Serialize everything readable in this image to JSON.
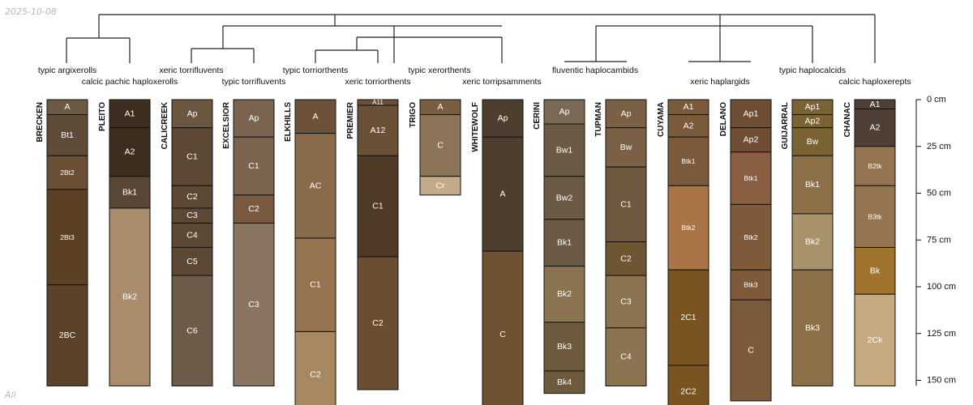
{
  "date_stamp": "2025-10-08",
  "footer_tag": "All",
  "depth_axis": {
    "unit": "cm",
    "max_depth_cm": 153,
    "ticks": [
      {
        "value": 0,
        "label": "0 cm"
      },
      {
        "value": 25,
        "label": "25 cm"
      },
      {
        "value": 50,
        "label": "50 cm"
      },
      {
        "value": 75,
        "label": "75 cm"
      },
      {
        "value": 100,
        "label": "100 cm"
      },
      {
        "value": 125,
        "label": "125 cm"
      },
      {
        "value": 150,
        "label": "150 cm"
      }
    ]
  },
  "taxa": [
    {
      "id": "argixerolls",
      "label": "typic argixerolls"
    },
    {
      "id": "haploxerolls",
      "label": "calcic pachic haploxerolls"
    },
    {
      "id": "torrifluvents_x",
      "label": "xeric torrifluvents"
    },
    {
      "id": "torrifluvents_t",
      "label": "typic torrifluvents"
    },
    {
      "id": "torriorthents_t",
      "label": "typic torriorthents"
    },
    {
      "id": "torriorthents_x",
      "label": "xeric torriorthents"
    },
    {
      "id": "xerorthents",
      "label": "typic xerorthents"
    },
    {
      "id": "torripsamments",
      "label": "xeric torripsamments"
    },
    {
      "id": "haplocambids",
      "label": "fluventic haplocambids"
    },
    {
      "id": "haplargids",
      "label": "xeric haplargids"
    },
    {
      "id": "haplocalcids",
      "label": "typic haplocalcids"
    },
    {
      "id": "haploxerepts",
      "label": "calcic haploxerepts"
    }
  ],
  "profiles": [
    {
      "name": "BRECKEN",
      "horizons": [
        {
          "name": "A",
          "top": 0,
          "bottom": 8,
          "color": "#6d5a44"
        },
        {
          "name": "Bt1",
          "top": 8,
          "bottom": 30,
          "color": "#5e4b38"
        },
        {
          "name": "2Bt2",
          "top": 30,
          "bottom": 48,
          "color": "#6b4f34"
        },
        {
          "name": "2Bt3",
          "top": 48,
          "bottom": 99,
          "color": "#5c4024"
        },
        {
          "name": "2BC",
          "top": 99,
          "bottom": 153,
          "color": "#5c4228"
        }
      ]
    },
    {
      "name": "PLEITO",
      "horizons": [
        {
          "name": "A1",
          "top": 0,
          "bottom": 15,
          "color": "#3e2e20"
        },
        {
          "name": "A2",
          "top": 15,
          "bottom": 41,
          "color": "#3e2e20"
        },
        {
          "name": "Bk1",
          "top": 41,
          "bottom": 58,
          "color": "#5a4634"
        },
        {
          "name": "Bk2",
          "top": 58,
          "bottom": 153,
          "color": "#a88c6c"
        }
      ]
    },
    {
      "name": "CALICREEK",
      "horizons": [
        {
          "name": "Ap",
          "top": 0,
          "bottom": 15,
          "color": "#6b5640"
        },
        {
          "name": "C1",
          "top": 15,
          "bottom": 46,
          "color": "#5c4834"
        },
        {
          "name": "C2",
          "top": 46,
          "bottom": 58,
          "color": "#5c4834"
        },
        {
          "name": "C3",
          "top": 58,
          "bottom": 66,
          "color": "#5c4834"
        },
        {
          "name": "C4",
          "top": 66,
          "bottom": 79,
          "color": "#5c4834"
        },
        {
          "name": "C5",
          "top": 79,
          "bottom": 94,
          "color": "#5c4834"
        },
        {
          "name": "C6",
          "top": 94,
          "bottom": 153,
          "color": "#6e5c4a"
        }
      ]
    },
    {
      "name": "EXCELSIOR",
      "horizons": [
        {
          "name": "Ap",
          "top": 0,
          "bottom": 20,
          "color": "#7a6450"
        },
        {
          "name": "C1",
          "top": 20,
          "bottom": 51,
          "color": "#7a6450"
        },
        {
          "name": "C2",
          "top": 51,
          "bottom": 66,
          "color": "#7a5a3e"
        },
        {
          "name": "C3",
          "top": 66,
          "bottom": 153,
          "color": "#8a7562"
        }
      ]
    },
    {
      "name": "ELKHILLS",
      "horizons": [
        {
          "name": "A",
          "top": 0,
          "bottom": 18,
          "color": "#6d5238"
        },
        {
          "name": "AC",
          "top": 18,
          "bottom": 74,
          "color": "#8a6c4a"
        },
        {
          "name": "C1",
          "top": 74,
          "bottom": 124,
          "color": "#95744f"
        },
        {
          "name": "C2",
          "top": 124,
          "bottom": 170,
          "color": "#a88860"
        }
      ]
    },
    {
      "name": "PREMIER",
      "horizons": [
        {
          "name": "A11",
          "top": 0,
          "bottom": 3,
          "color": "#6b5038"
        },
        {
          "name": "A12",
          "top": 3,
          "bottom": 30,
          "color": "#6b5038"
        },
        {
          "name": "C1",
          "top": 30,
          "bottom": 84,
          "color": "#4e3a26"
        },
        {
          "name": "C2",
          "top": 84,
          "bottom": 155,
          "color": "#6b4e32"
        }
      ]
    },
    {
      "name": "TRIGO",
      "horizons": [
        {
          "name": "A",
          "top": 0,
          "bottom": 8,
          "color": "#7a5e40"
        },
        {
          "name": "C",
          "top": 8,
          "bottom": 41,
          "color": "#8c7458"
        },
        {
          "name": "Cr",
          "top": 41,
          "bottom": 51,
          "color": "#c4aa88"
        }
      ]
    },
    {
      "name": "WHITEWOLF",
      "horizons": [
        {
          "name": "Ap",
          "top": 0,
          "bottom": 20,
          "color": "#4e3e30"
        },
        {
          "name": "A",
          "top": 20,
          "bottom": 81,
          "color": "#4e3e30"
        },
        {
          "name": "C",
          "top": 81,
          "bottom": 170,
          "color": "#6e5232"
        }
      ]
    },
    {
      "name": "CERINI",
      "horizons": [
        {
          "name": "Ap",
          "top": 0,
          "bottom": 13,
          "color": "#7a6a55"
        },
        {
          "name": "Bw1",
          "top": 13,
          "bottom": 41,
          "color": "#6b5a46"
        },
        {
          "name": "Bw2",
          "top": 41,
          "bottom": 64,
          "color": "#6b5a46"
        },
        {
          "name": "Bk1",
          "top": 64,
          "bottom": 89,
          "color": "#6b5a46"
        },
        {
          "name": "Bk2",
          "top": 89,
          "bottom": 119,
          "color": "#8a7350"
        },
        {
          "name": "Bk3",
          "top": 119,
          "bottom": 145,
          "color": "#6e5a3c"
        },
        {
          "name": "Bk4",
          "top": 145,
          "bottom": 157,
          "color": "#6e5a3c"
        }
      ]
    },
    {
      "name": "TUPMAN",
      "horizons": [
        {
          "name": "Ap",
          "top": 0,
          "bottom": 15,
          "color": "#7a6044"
        },
        {
          "name": "Bw",
          "top": 15,
          "bottom": 36,
          "color": "#7a6044"
        },
        {
          "name": "C1",
          "top": 36,
          "bottom": 76,
          "color": "#6e5840"
        },
        {
          "name": "C2",
          "top": 76,
          "bottom": 94,
          "color": "#6e5632"
        },
        {
          "name": "C3",
          "top": 94,
          "bottom": 122,
          "color": "#8c7450"
        },
        {
          "name": "C4",
          "top": 122,
          "bottom": 153,
          "color": "#8c7450"
        }
      ]
    },
    {
      "name": "CUYAMA",
      "horizons": [
        {
          "name": "A1",
          "top": 0,
          "bottom": 8,
          "color": "#7a5a3a"
        },
        {
          "name": "A2",
          "top": 8,
          "bottom": 20,
          "color": "#7a5a3a"
        },
        {
          "name": "Btk1",
          "top": 20,
          "bottom": 46,
          "color": "#7a5a3a"
        },
        {
          "name": "Btk2",
          "top": 46,
          "bottom": 91,
          "color": "#a87448"
        },
        {
          "name": "2C1",
          "top": 91,
          "bottom": 142,
          "color": "#7a5420"
        },
        {
          "name": "2C2",
          "top": 142,
          "bottom": 170,
          "color": "#7a5420"
        }
      ]
    },
    {
      "name": "DELANO",
      "horizons": [
        {
          "name": "Ap1",
          "top": 0,
          "bottom": 15,
          "color": "#6e4e34"
        },
        {
          "name": "Ap2",
          "top": 15,
          "bottom": 28,
          "color": "#6e4e34"
        },
        {
          "name": "Btk1",
          "top": 28,
          "bottom": 56,
          "color": "#8a5e40"
        },
        {
          "name": "Btk2",
          "top": 56,
          "bottom": 91,
          "color": "#7e5a3a"
        },
        {
          "name": "Btk3",
          "top": 91,
          "bottom": 107,
          "color": "#7e5a3a"
        },
        {
          "name": "C",
          "top": 107,
          "bottom": 161,
          "color": "#7a5a3a"
        }
      ]
    },
    {
      "name": "GUIJARRAL",
      "horizons": [
        {
          "name": "Ap1",
          "top": 0,
          "bottom": 8,
          "color": "#7a6234"
        },
        {
          "name": "Ap2",
          "top": 8,
          "bottom": 15,
          "color": "#7a6234"
        },
        {
          "name": "Bw",
          "top": 15,
          "bottom": 30,
          "color": "#7a6234"
        },
        {
          "name": "Bk1",
          "top": 30,
          "bottom": 61,
          "color": "#8c7048"
        },
        {
          "name": "Bk2",
          "top": 61,
          "bottom": 91,
          "color": "#a8926a"
        },
        {
          "name": "Bk3",
          "top": 91,
          "bottom": 153,
          "color": "#8c7048"
        }
      ]
    },
    {
      "name": "CHANAC",
      "horizons": [
        {
          "name": "A1",
          "top": 0,
          "bottom": 5,
          "color": "#4e4034"
        },
        {
          "name": "A2",
          "top": 5,
          "bottom": 25,
          "color": "#4e4034"
        },
        {
          "name": "B2tk",
          "top": 25,
          "bottom": 46,
          "color": "#957550"
        },
        {
          "name": "B3tk",
          "top": 46,
          "bottom": 79,
          "color": "#957550"
        },
        {
          "name": "Bk",
          "top": 79,
          "bottom": 104,
          "color": "#a0742c"
        },
        {
          "name": "2Ck",
          "top": 104,
          "bottom": 153,
          "color": "#c8aa80"
        }
      ]
    }
  ]
}
